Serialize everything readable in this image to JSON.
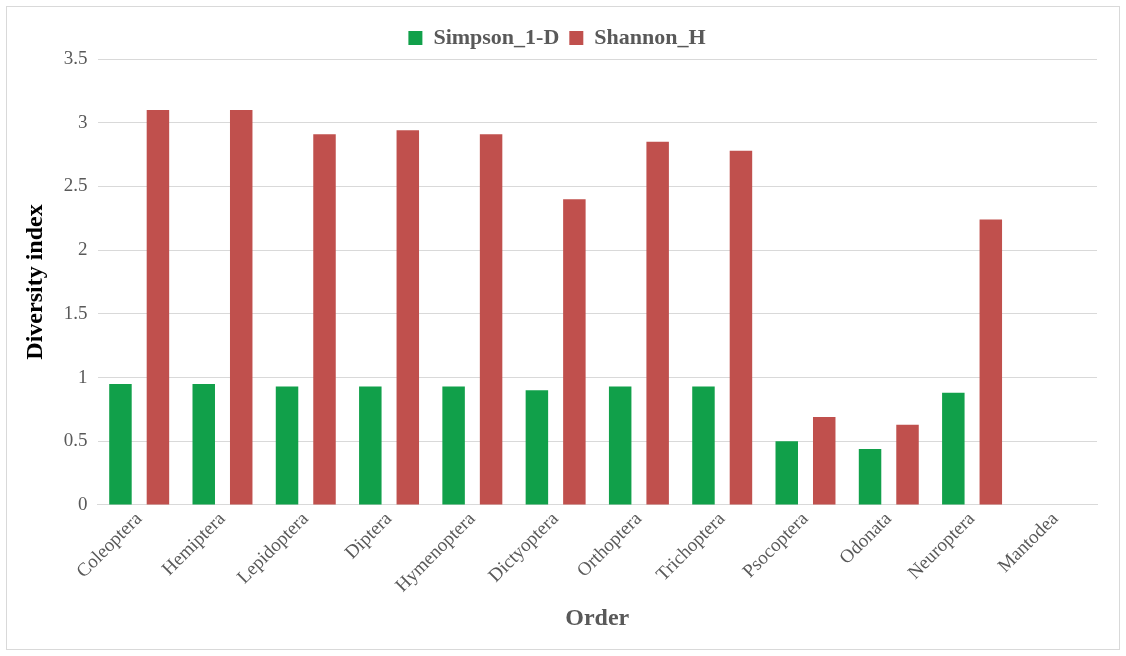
{
  "chart_data": {
    "type": "bar",
    "xlabel": "Order",
    "ylabel": "Diversity index",
    "categories": [
      "Coleoptera",
      "Hemiptera",
      "Lepidoptera",
      "Diptera",
      "Hymenoptera",
      "Dictyoptera",
      "Orthoptera",
      "Trichoptera",
      "Psocoptera",
      "Odonata",
      "Neuroptera",
      "Mantodea"
    ],
    "series": [
      {
        "name": "Simpson_1-D",
        "color": "#11a04a",
        "values": [
          0.95,
          0.95,
          0.93,
          0.93,
          0.93,
          0.9,
          0.93,
          0.93,
          0.5,
          0.44,
          0.88,
          0
        ]
      },
      {
        "name": "Shannon_H",
        "color": "#c0504d",
        "values": [
          3.1,
          3.1,
          2.91,
          2.94,
          2.91,
          2.4,
          2.85,
          2.78,
          0.69,
          0.63,
          2.24,
          0
        ]
      }
    ],
    "ylim": [
      0,
      3.5
    ],
    "yticks": [
      0,
      0.5,
      1,
      1.5,
      2,
      2.5,
      3,
      3.5
    ],
    "grid": "y",
    "legend": "top"
  }
}
